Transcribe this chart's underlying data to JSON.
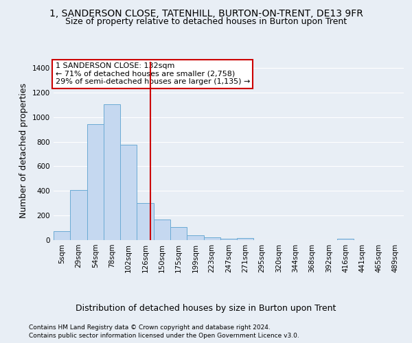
{
  "title": "1, SANDERSON CLOSE, TATENHILL, BURTON-ON-TRENT, DE13 9FR",
  "subtitle": "Size of property relative to detached houses in Burton upon Trent",
  "xlabel": "Distribution of detached houses by size in Burton upon Trent",
  "ylabel": "Number of detached properties",
  "footer1": "Contains HM Land Registry data © Crown copyright and database right 2024.",
  "footer2": "Contains public sector information licensed under the Open Government Licence v3.0.",
  "bar_labels": [
    "5sqm",
    "29sqm",
    "54sqm",
    "78sqm",
    "102sqm",
    "126sqm",
    "150sqm",
    "175sqm",
    "199sqm",
    "223sqm",
    "247sqm",
    "271sqm",
    "295sqm",
    "320sqm",
    "344sqm",
    "368sqm",
    "392sqm",
    "416sqm",
    "441sqm",
    "465sqm",
    "489sqm"
  ],
  "bar_values": [
    70,
    405,
    945,
    1105,
    775,
    300,
    170,
    105,
    40,
    20,
    10,
    15,
    0,
    0,
    0,
    0,
    0,
    10,
    0,
    0,
    0
  ],
  "bar_color": "#c5d8f0",
  "bar_edge_color": "#6aaad4",
  "vline_x": 5.32,
  "vline_color": "#cc0000",
  "annotation_text": "1 SANDERSON CLOSE: 132sqm\n← 71% of detached houses are smaller (2,758)\n29% of semi-detached houses are larger (1,135) →",
  "annotation_box_color": "#ffffff",
  "annotation_box_edge": "#cc0000",
  "ylim": [
    0,
    1450
  ],
  "yticks": [
    0,
    200,
    400,
    600,
    800,
    1000,
    1200,
    1400
  ],
  "background_color": "#e8eef5",
  "plot_bg_color": "#e8eef5",
  "grid_color": "#ffffff",
  "title_fontsize": 10,
  "subtitle_fontsize": 9,
  "axis_label_fontsize": 9,
  "tick_fontsize": 7.5,
  "footer_fontsize": 6.5
}
